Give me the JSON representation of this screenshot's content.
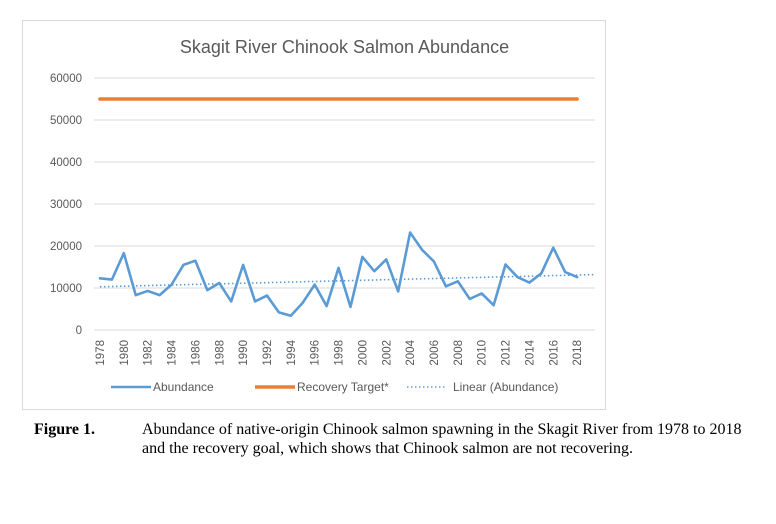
{
  "chart_data": {
    "type": "line",
    "title": "Skagit River Chinook Salmon Abundance",
    "x": [
      1978,
      1979,
      1980,
      1981,
      1982,
      1983,
      1984,
      1985,
      1986,
      1987,
      1988,
      1989,
      1990,
      1991,
      1992,
      1993,
      1994,
      1995,
      1996,
      1997,
      1998,
      1999,
      2000,
      2001,
      2002,
      2003,
      2004,
      2005,
      2006,
      2007,
      2008,
      2009,
      2010,
      2011,
      2012,
      2013,
      2014,
      2015,
      2016,
      2017,
      2018
    ],
    "x_tick_labels": [
      "1978",
      "1980",
      "1982",
      "1984",
      "1986",
      "1988",
      "1990",
      "1992",
      "1994",
      "1996",
      "1998",
      "2000",
      "2002",
      "2004",
      "2006",
      "2008",
      "2010",
      "2012",
      "2014",
      "2016",
      "2018"
    ],
    "y_tick_labels": [
      "0",
      "10000",
      "20000",
      "30000",
      "40000",
      "50000",
      "60000"
    ],
    "ylim": [
      0,
      60000
    ],
    "grid": true,
    "legend_position": "bottom",
    "series": [
      {
        "name": "Abundance",
        "color": "#5b9bd5",
        "style": "solid",
        "values": [
          12300,
          12000,
          18300,
          8300,
          9300,
          8300,
          10800,
          15500,
          16500,
          9500,
          11200,
          6800,
          15500,
          6800,
          8200,
          4200,
          3400,
          6500,
          10800,
          5700,
          14800,
          5500,
          17400,
          14000,
          16800,
          9200,
          23200,
          19100,
          16300,
          10400,
          11600,
          7400,
          8700,
          5900,
          15600,
          12600,
          11300,
          13500,
          19600,
          13800,
          12600
        ]
      },
      {
        "name": "Recovery Target*",
        "color": "#ed7d31",
        "style": "solid",
        "values": [
          55000,
          55000,
          55000,
          55000,
          55000,
          55000,
          55000,
          55000,
          55000,
          55000,
          55000,
          55000,
          55000,
          55000,
          55000,
          55000,
          55000,
          55000,
          55000,
          55000,
          55000,
          55000,
          55000,
          55000,
          55000,
          55000,
          55000,
          55000,
          55000,
          55000,
          55000,
          55000,
          55000,
          55000,
          55000,
          55000,
          55000,
          55000,
          55000,
          55000,
          55000
        ]
      },
      {
        "name": "Linear (Abundance)",
        "color": "#5b9bd5",
        "style": "dotted",
        "start": [
          1978,
          10300
        ],
        "end": [
          2019.5,
          13200
        ]
      }
    ]
  },
  "caption": {
    "label": "Figure 1.",
    "text": "Abundance of native-origin Chinook salmon spawning in the Skagit River from 1978 to 2018 and the recovery goal, which shows that Chinook salmon are not recovering."
  }
}
